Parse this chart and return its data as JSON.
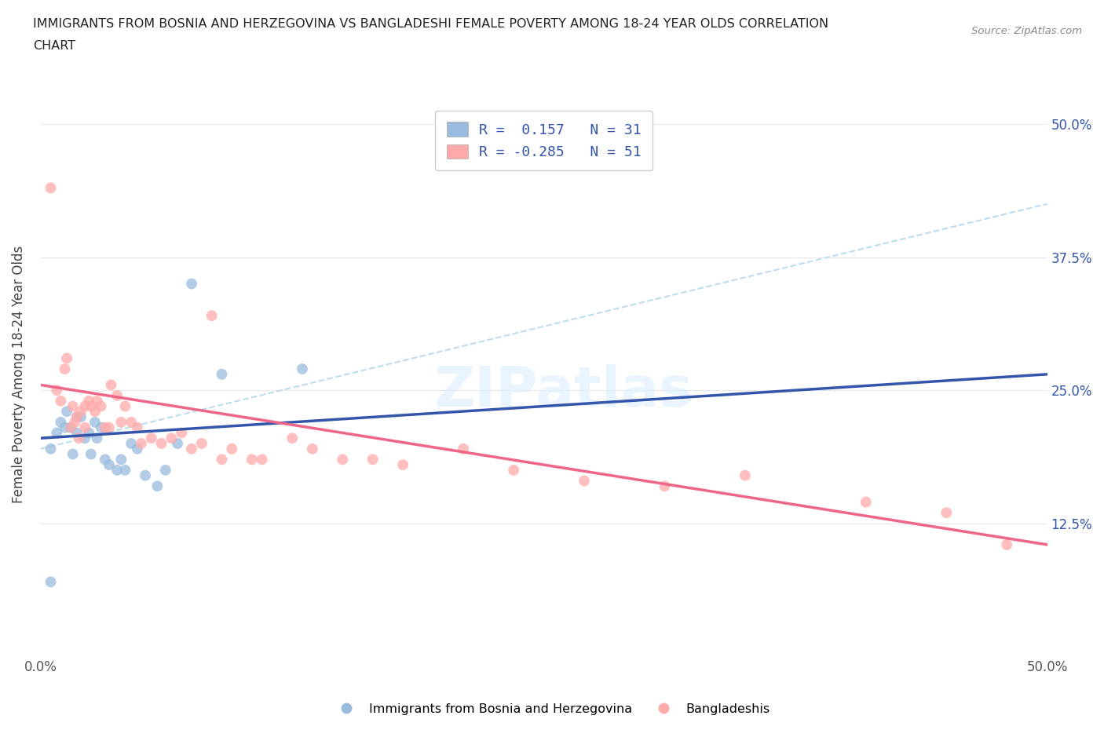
{
  "title_line1": "IMMIGRANTS FROM BOSNIA AND HERZEGOVINA VS BANGLADESHI FEMALE POVERTY AMONG 18-24 YEAR OLDS CORRELATION",
  "title_line2": "CHART",
  "source_text": "Source: ZipAtlas.com",
  "ylabel": "Female Poverty Among 18-24 Year Olds",
  "xlim": [
    0.0,
    0.5
  ],
  "ylim": [
    0.0,
    0.53
  ],
  "xtick_labels": [
    "0.0%",
    "",
    "",
    "",
    "50.0%"
  ],
  "xtick_vals": [
    0.0,
    0.125,
    0.25,
    0.375,
    0.5
  ],
  "ytick_labels": [
    "12.5%",
    "25.0%",
    "37.5%",
    "50.0%"
  ],
  "ytick_vals": [
    0.125,
    0.25,
    0.375,
    0.5
  ],
  "legend_label1": "R =  0.157   N = 31",
  "legend_label2": "R = -0.285   N = 51",
  "color_blue": "#99BBDD",
  "color_pink": "#FFAAAA",
  "color_trendline_blue": "#3355AA",
  "color_trendline_pink": "#EE6688",
  "color_trendline_gray": "#BBDDEE",
  "watermark_text": "ZIPatlas",
  "blue_scatter_x": [
    0.005,
    0.008,
    0.01,
    0.012,
    0.013,
    0.015,
    0.016,
    0.018,
    0.018,
    0.02,
    0.022,
    0.024,
    0.025,
    0.027,
    0.028,
    0.03,
    0.032,
    0.034,
    0.038,
    0.04,
    0.042,
    0.045,
    0.048,
    0.052,
    0.058,
    0.062,
    0.068,
    0.075,
    0.09,
    0.13,
    0.005
  ],
  "blue_scatter_y": [
    0.195,
    0.21,
    0.22,
    0.215,
    0.23,
    0.215,
    0.19,
    0.225,
    0.21,
    0.225,
    0.205,
    0.21,
    0.19,
    0.22,
    0.205,
    0.215,
    0.185,
    0.18,
    0.175,
    0.185,
    0.175,
    0.2,
    0.195,
    0.17,
    0.16,
    0.175,
    0.2,
    0.35,
    0.265,
    0.27,
    0.07
  ],
  "pink_scatter_x": [
    0.005,
    0.008,
    0.01,
    0.012,
    0.013,
    0.015,
    0.016,
    0.017,
    0.018,
    0.019,
    0.02,
    0.022,
    0.022,
    0.024,
    0.025,
    0.027,
    0.028,
    0.03,
    0.032,
    0.034,
    0.035,
    0.038,
    0.04,
    0.042,
    0.045,
    0.048,
    0.05,
    0.055,
    0.06,
    0.065,
    0.07,
    0.075,
    0.08,
    0.085,
    0.09,
    0.095,
    0.105,
    0.11,
    0.125,
    0.135,
    0.15,
    0.165,
    0.18,
    0.21,
    0.235,
    0.27,
    0.31,
    0.35,
    0.41,
    0.45,
    0.48
  ],
  "pink_scatter_y": [
    0.44,
    0.25,
    0.24,
    0.27,
    0.28,
    0.215,
    0.235,
    0.22,
    0.225,
    0.205,
    0.23,
    0.235,
    0.215,
    0.24,
    0.235,
    0.23,
    0.24,
    0.235,
    0.215,
    0.215,
    0.255,
    0.245,
    0.22,
    0.235,
    0.22,
    0.215,
    0.2,
    0.205,
    0.2,
    0.205,
    0.21,
    0.195,
    0.2,
    0.32,
    0.185,
    0.195,
    0.185,
    0.185,
    0.205,
    0.195,
    0.185,
    0.185,
    0.18,
    0.195,
    0.175,
    0.165,
    0.16,
    0.17,
    0.145,
    0.135,
    0.105
  ],
  "blue_trend_x": [
    0.0,
    0.5
  ],
  "blue_trend_y": [
    0.205,
    0.265
  ],
  "pink_trend_x": [
    0.0,
    0.5
  ],
  "pink_trend_y": [
    0.255,
    0.105
  ],
  "gray_trend_x": [
    0.0,
    0.5
  ],
  "gray_trend_y": [
    0.195,
    0.425
  ],
  "background_color": "#FFFFFF",
  "grid_color": "#E8E8E8",
  "bottom_legend_label1": "Immigrants from Bosnia and Herzegovina",
  "bottom_legend_label2": "Bangladeshis"
}
